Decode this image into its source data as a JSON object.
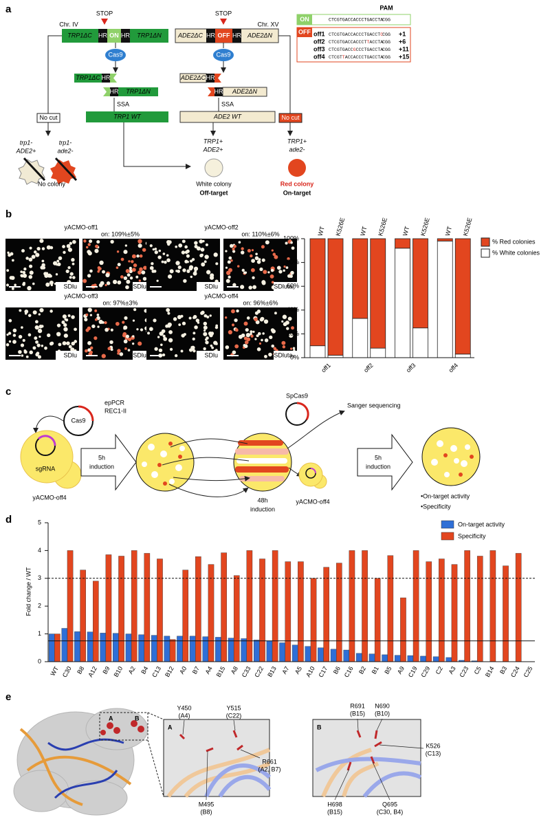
{
  "panel_labels": [
    "a",
    "b",
    "c",
    "d",
    "e"
  ],
  "panel_a": {
    "stop": "STOP",
    "hr": "HR",
    "cas9": "Cas9",
    "ssa": "SSA",
    "no_cut": "No cut",
    "left": {
      "chr": "Chr. IV",
      "c": "TRP1ΔC",
      "site": "ON",
      "n": "TRP1ΔN",
      "wt": "TRP1 WT"
    },
    "right": {
      "chr": "Chr. XV",
      "c": "ADE2ΔC",
      "site": "OFF",
      "n": "ADE2ΔN",
      "wt": "ADE2 WT"
    },
    "genotypes": [
      [
        "trp1-",
        "ADE2+"
      ],
      [
        "trp1-",
        "ade2-"
      ],
      [
        "TRP1+",
        "ADE2+"
      ],
      [
        "TRP1+",
        "ade2-"
      ]
    ],
    "no_colony": "No colony",
    "white_colony": [
      "White colony",
      "Off-target"
    ],
    "red_colony": [
      "Red colony",
      "On-target"
    ],
    "table": {
      "pam": "PAM",
      "on_label": "ON",
      "on_seq": "CTCGTGACCACCCTGACCTA",
      "pam_seq": "CGG",
      "off_label": "OFF",
      "rows": [
        {
          "name": "off1",
          "parts": [
            "CTCGTGACCACCCTGACCT",
            "C"
          ],
          "mismatch_index": 1,
          "shift": "+1"
        },
        {
          "name": "off2",
          "parts": [
            "CTCGTGACCACCCT",
            "T",
            "ACCTA"
          ],
          "mismatch_index": 1,
          "shift": "+6"
        },
        {
          "name": "off3",
          "parts": [
            "CTCGTGACC",
            "G",
            "CCCTGACCTA"
          ],
          "mismatch_index": 1,
          "shift": "+11"
        },
        {
          "name": "off4",
          "parts": [
            "CTCGT",
            "T",
            "ACCACCCTGACCTA"
          ],
          "mismatch_index": 1,
          "shift": "+15"
        }
      ]
    }
  },
  "panel_b": {
    "strains": [
      {
        "name": "yACMO-off1",
        "on": "on: 109%±5%"
      },
      {
        "name": "yACMO-off2",
        "on": "on: 110%±6%"
      },
      {
        "name": "yACMO-off3",
        "on": "on: 97%±3%"
      },
      {
        "name": "yACMO-off4",
        "on": "on: 96%±6%"
      }
    ],
    "media": [
      "SDlu",
      "SDluta₅"
    ]
  },
  "panel_c": {
    "epPCR": "epPCR",
    "rec": "REC1-II",
    "cas9": "Cas9",
    "sgrna": "sgRNA",
    "strain": "yACMO-off4",
    "induction_5h": [
      "5h",
      "induction"
    ],
    "induction_48h": [
      "48h",
      "induction"
    ],
    "spcas9": "SpCas9",
    "sanger": "Sanger sequencing",
    "outcomes": [
      "•On-target activity",
      "•Specificity"
    ]
  },
  "panel_e": {
    "regions": [
      "A",
      "B"
    ],
    "residues": [
      {
        "name": "Y450",
        "variant": "(A4)"
      },
      {
        "name": "Y515",
        "variant": "(C22)"
      },
      {
        "name": "R661",
        "variant": "(A2, B7)"
      },
      {
        "name": "M495",
        "variant": "(B8)"
      },
      {
        "name": "R691",
        "variant": "(B15)"
      },
      {
        "name": "N690",
        "variant": "(B10)"
      },
      {
        "name": "K526",
        "variant": "(C13)"
      },
      {
        "name": "H698",
        "variant": "(B15)"
      },
      {
        "name": "Q695",
        "variant": "(C30, B4)"
      }
    ]
  },
  "chart_data": [
    {
      "type": "bar",
      "stacked": true,
      "categories": [
        "WT",
        "K526E",
        "WT",
        "K526E",
        "WT",
        "K526E",
        "WT",
        "K526E"
      ],
      "group_labels": [
        "off1",
        "off2",
        "off3",
        "off4"
      ],
      "series": [
        {
          "name": "% Red colonies",
          "color": "#e2461f",
          "values": [
            90,
            98,
            67,
            92,
            8,
            75,
            2,
            97
          ]
        },
        {
          "name": "% White colonies",
          "color": "#ffffff",
          "values": [
            10,
            2,
            33,
            8,
            92,
            25,
            98,
            3
          ]
        }
      ],
      "ylim": [
        0,
        100
      ],
      "yticks": [
        {
          "value": 0,
          "label": "0%"
        },
        {
          "value": 20,
          "label": "20%"
        },
        {
          "value": 40,
          "label": "40%"
        },
        {
          "value": 60,
          "label": "60%"
        },
        {
          "value": 80,
          "label": "80%"
        },
        {
          "value": 100,
          "label": "100%"
        }
      ]
    },
    {
      "type": "bar",
      "ylabel": "Fold change / WT",
      "categories": [
        "WT",
        "C30",
        "B8",
        "A12",
        "B9",
        "B10",
        "A2",
        "B4",
        "C13",
        "B12",
        "A0",
        "B7",
        "A4",
        "B15",
        "A8",
        "C33",
        "C22",
        "B13",
        "A7",
        "A5",
        "A10",
        "C17",
        "B6",
        "C16",
        "B2",
        "B1",
        "B5",
        "A9",
        "C19",
        "C29",
        "C2",
        "A3",
        "C23",
        "C5",
        "B14",
        "B3",
        "C24",
        "C25"
      ],
      "series": [
        {
          "name": "On-target activity",
          "color": "#2f6fd6",
          "values": [
            1.0,
            1.2,
            1.08,
            1.07,
            1.03,
            1.02,
            1.0,
            0.97,
            0.95,
            0.92,
            0.92,
            0.92,
            0.9,
            0.88,
            0.85,
            0.83,
            0.78,
            0.75,
            0.68,
            0.6,
            0.55,
            0.5,
            0.45,
            0.42,
            0.3,
            0.28,
            0.25,
            0.23,
            0.22,
            0.2,
            0.18,
            0.15,
            0.05,
            0.03,
            0,
            0,
            0,
            0
          ]
        },
        {
          "name": "Specificity",
          "color": "#e2461f",
          "values": [
            1.0,
            4.0,
            3.3,
            2.9,
            3.85,
            3.8,
            4.0,
            3.9,
            3.7,
            0.8,
            3.3,
            3.78,
            3.5,
            3.92,
            3.1,
            4.0,
            3.7,
            4.0,
            3.6,
            3.6,
            3.0,
            3.4,
            3.55,
            4.0,
            4.0,
            3.0,
            3.82,
            2.3,
            4.0,
            3.6,
            3.7,
            3.5,
            4.0,
            3.8,
            4.0,
            3.45,
            3.9,
            null
          ]
        }
      ],
      "ylim": [
        0,
        5
      ],
      "yticks": [
        0,
        1,
        2,
        3,
        4,
        5
      ],
      "hlines": [
        {
          "value": 0.75,
          "dashed": false
        },
        {
          "value": 3,
          "dashed": true
        }
      ]
    }
  ]
}
